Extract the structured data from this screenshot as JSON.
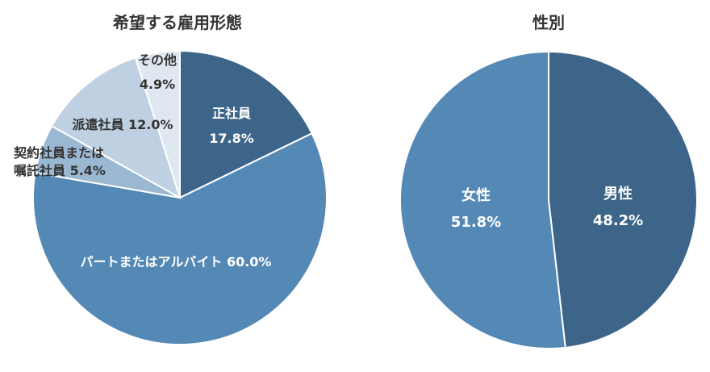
{
  "chart_data": [
    {
      "type": "pie",
      "title": "希望する雇用形態",
      "slices": [
        {
          "label": "正社員",
          "value": 17.8,
          "value_label": "17.8%",
          "color": "#3d6589"
        },
        {
          "label": "パートまたはアルバイト",
          "value": 60.0,
          "value_label": "60.0%",
          "color": "#5589b5"
        },
        {
          "label": "契約社員または嘱託社員",
          "label_lines": [
            "契約社員または",
            "嘱託社員"
          ],
          "value": 5.4,
          "value_label": "5.4%",
          "color": "#9bb8d3"
        },
        {
          "label": "派遣社員",
          "value": 12.0,
          "value_label": "12.0%",
          "color": "#bed0e2"
        },
        {
          "label": "その他",
          "value": 4.9,
          "value_label": "4.9%",
          "color": "#dfe7f0"
        }
      ]
    },
    {
      "type": "pie",
      "title": "性別",
      "slices": [
        {
          "label": "男性",
          "value": 48.2,
          "value_label": "48.2%",
          "color": "#3d6589"
        },
        {
          "label": "女性",
          "value": 51.8,
          "value_label": "51.8%",
          "color": "#5589b5"
        }
      ]
    }
  ]
}
